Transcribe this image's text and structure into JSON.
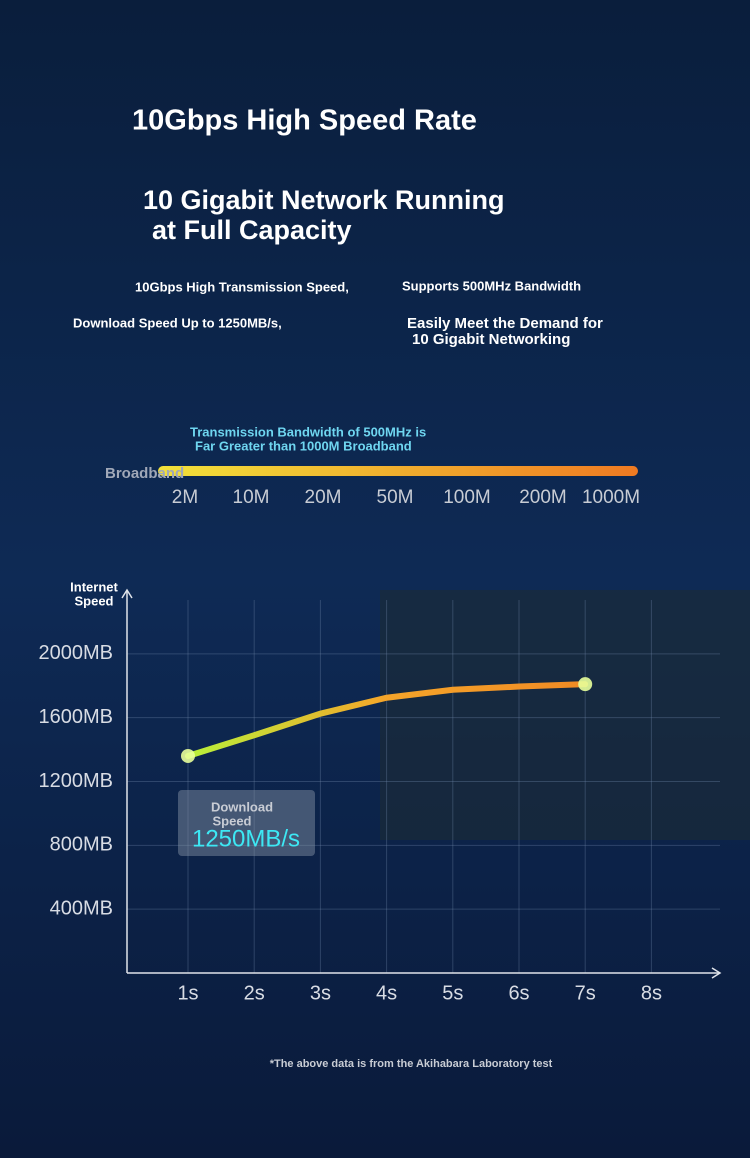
{
  "header": {
    "title": "10Gbps High Speed Rate",
    "subtitle": [
      "10 Gigabit Network Running",
      "at Full Capacity"
    ]
  },
  "features": {
    "left": [
      "10Gbps High Transmission Speed,",
      "Download Speed Up to 1250MB/s,"
    ],
    "right": [
      "Supports 500MHz Bandwidth",
      "Easily Meet the Demand for",
      "10 Gigabit Networking"
    ]
  },
  "bandwidth_scale": {
    "caption": [
      "Transmission Bandwidth of 500MHz is",
      "Far Greater than 1000M Broadband"
    ],
    "label": "Broadband",
    "ticks": [
      "2M",
      "10M",
      "20M",
      "50M",
      "100M",
      "200M",
      "1000M"
    ]
  },
  "chart_data": {
    "type": "line",
    "ylabel": [
      "Internet",
      "Speed"
    ],
    "categories": [
      "1s",
      "2s",
      "3s",
      "4s",
      "5s",
      "6s",
      "7s",
      "8s"
    ],
    "series": [
      {
        "name": "Internet Speed",
        "color": "#f08a24",
        "values": [
          1360,
          1490,
          1625,
          1725,
          1775,
          1795,
          1810,
          null
        ]
      }
    ],
    "ylim": [
      0,
      2400
    ],
    "yticks": [
      {
        "value": 400,
        "label": "400MB"
      },
      {
        "value": 800,
        "label": "800MB"
      },
      {
        "value": 1200,
        "label": "1200MB"
      },
      {
        "value": 1600,
        "label": "1600MB"
      },
      {
        "value": 2000,
        "label": "2000MB"
      }
    ],
    "grid": true,
    "annotation": {
      "label": [
        "Download",
        "Speed"
      ],
      "value": "1250MB/s"
    }
  },
  "footnote": "*The above data is from the Akihabara Laboratory test"
}
